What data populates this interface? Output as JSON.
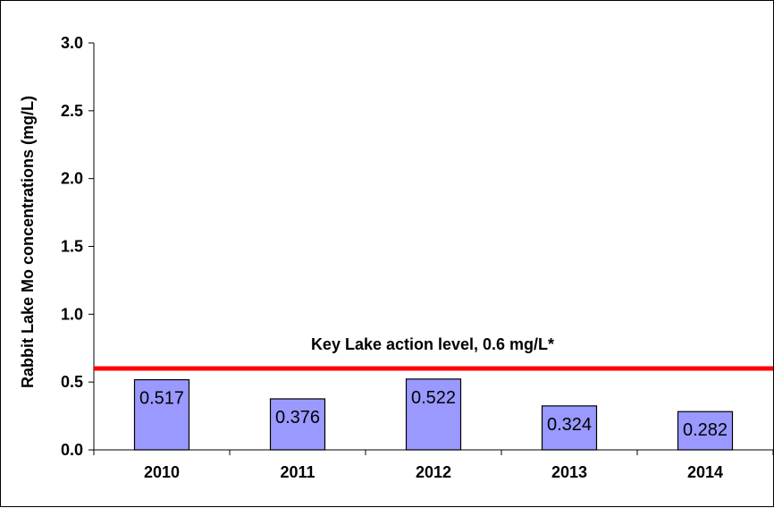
{
  "chart_data": {
    "type": "bar",
    "categories": [
      "2010",
      "2011",
      "2012",
      "2013",
      "2014"
    ],
    "values": [
      0.517,
      0.376,
      0.522,
      0.324,
      0.282
    ],
    "data_labels": [
      "0.517",
      "0.376",
      "0.522",
      "0.324",
      "0.282"
    ],
    "ylabel": "Rabbit Lake Mo concentrations (mg/L)",
    "xlabel": "",
    "ylim": [
      0,
      3.0
    ],
    "yticks": [
      "0.0",
      "0.5",
      "1.0",
      "1.5",
      "2.0",
      "2.5",
      "3.0"
    ],
    "reference_line": {
      "value": 0.6,
      "label": "Key Lake action level, 0.6 mg/L*",
      "color": "#ff0000"
    },
    "bar_color": "#9999ff",
    "grid": false,
    "legend": "none"
  }
}
